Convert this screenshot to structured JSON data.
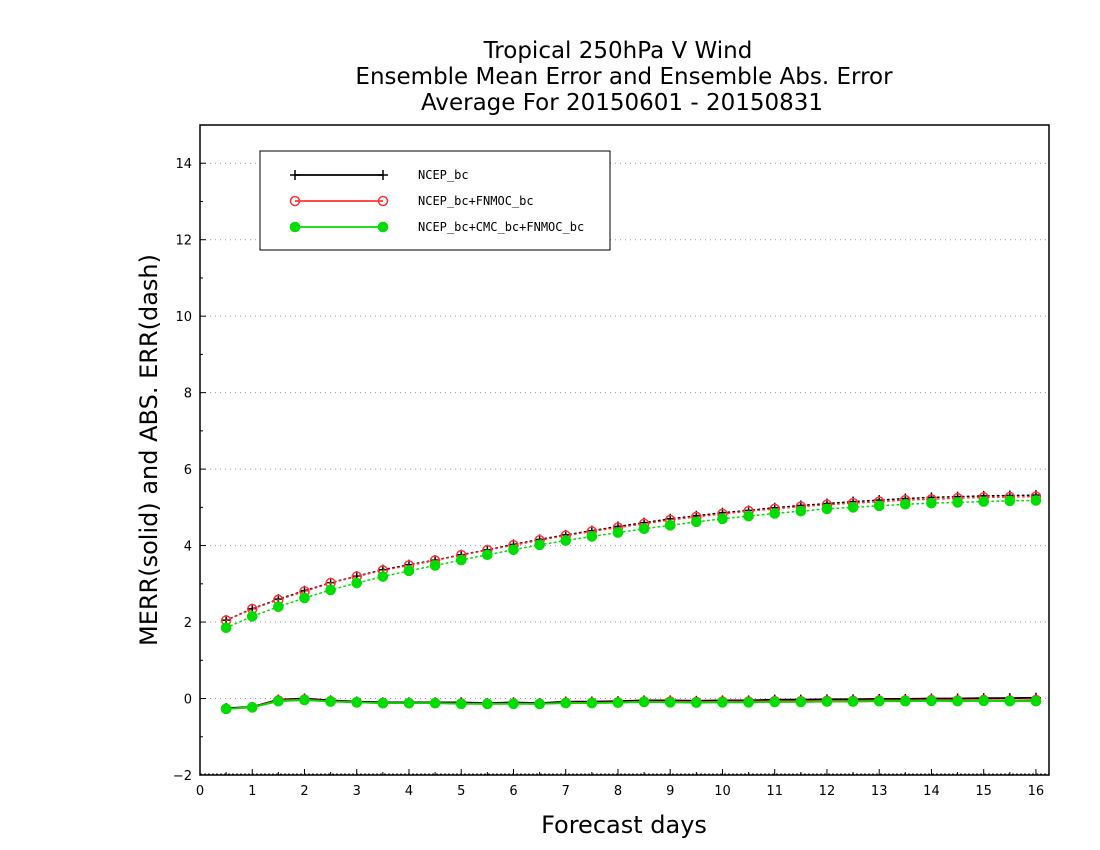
{
  "chart_data": {
    "type": "line",
    "title_lines": [
      "Tropical 250hPa V Wind",
      "Ensemble Mean Error and Ensemble Abs. Error",
      "Average For 20150601 - 20150831"
    ],
    "xlabel": "Forecast days",
    "ylabel": "MERR(solid) and ABS. ERR(dash)",
    "xlim": [
      0,
      16.25
    ],
    "ylim": [
      -2,
      15
    ],
    "xticks": [
      "0",
      "1",
      "2",
      "3",
      "4",
      "5",
      "6",
      "7",
      "8",
      "9",
      "10",
      "11",
      "12",
      "13",
      "14",
      "15",
      "16"
    ],
    "yticks": [
      "-2",
      "0",
      "2",
      "4",
      "6",
      "8",
      "10",
      "12",
      "14"
    ],
    "grid": "horizontal dotted",
    "legend_position": "top-left",
    "x": [
      0.5,
      1,
      1.5,
      2,
      2.5,
      3,
      3.5,
      4,
      4.5,
      5,
      5.5,
      6,
      6.5,
      7,
      7.5,
      8,
      8.5,
      9,
      9.5,
      10,
      10.5,
      11,
      11.5,
      12,
      12.5,
      13,
      13.5,
      14,
      14.5,
      15,
      15.5,
      16
    ],
    "series": [
      {
        "name": "NCEP_bc",
        "color": "#000000",
        "marker": "plus",
        "merr": [
          -0.25,
          -0.22,
          -0.03,
          0.0,
          -0.05,
          -0.08,
          -0.1,
          -0.1,
          -0.1,
          -0.1,
          -0.12,
          -0.1,
          -0.12,
          -0.08,
          -0.08,
          -0.07,
          -0.05,
          -0.05,
          -0.06,
          -0.05,
          -0.05,
          -0.03,
          -0.03,
          -0.02,
          -0.02,
          -0.01,
          -0.01,
          0.0,
          0.0,
          0.01,
          0.01,
          0.02
        ],
        "abs_err": [
          2.05,
          2.35,
          2.6,
          2.82,
          3.03,
          3.2,
          3.37,
          3.5,
          3.62,
          3.76,
          3.89,
          4.03,
          4.16,
          4.28,
          4.39,
          4.5,
          4.6,
          4.7,
          4.78,
          4.86,
          4.92,
          4.99,
          5.05,
          5.1,
          5.15,
          5.19,
          5.23,
          5.26,
          5.28,
          5.3,
          5.31,
          5.32
        ]
      },
      {
        "name": "NCEP_bc+FNMOC_bc",
        "color": "#ff3333",
        "marker": "open-circle",
        "merr": [
          -0.27,
          -0.23,
          -0.05,
          -0.03,
          -0.07,
          -0.1,
          -0.12,
          -0.12,
          -0.12,
          -0.13,
          -0.14,
          -0.13,
          -0.14,
          -0.11,
          -0.11,
          -0.1,
          -0.08,
          -0.08,
          -0.09,
          -0.08,
          -0.08,
          -0.07,
          -0.07,
          -0.06,
          -0.06,
          -0.05,
          -0.05,
          -0.04,
          -0.05,
          -0.04,
          -0.05,
          -0.04
        ],
        "abs_err": [
          2.04,
          2.34,
          2.58,
          2.8,
          3.02,
          3.19,
          3.35,
          3.48,
          3.61,
          3.75,
          3.88,
          4.01,
          4.14,
          4.26,
          4.37,
          4.47,
          4.57,
          4.67,
          4.75,
          4.83,
          4.9,
          4.96,
          5.02,
          5.07,
          5.11,
          5.15,
          5.19,
          5.21,
          5.24,
          5.26,
          5.27,
          5.28
        ]
      },
      {
        "name": "NCEP_bc+CMC_bc+FNMOC_bc",
        "color": "#00dd00",
        "marker": "filled-circle",
        "merr": [
          -0.27,
          -0.23,
          -0.07,
          -0.04,
          -0.08,
          -0.1,
          -0.12,
          -0.12,
          -0.12,
          -0.14,
          -0.14,
          -0.14,
          -0.14,
          -0.12,
          -0.12,
          -0.11,
          -0.09,
          -0.1,
          -0.11,
          -0.1,
          -0.1,
          -0.09,
          -0.09,
          -0.08,
          -0.08,
          -0.07,
          -0.07,
          -0.06,
          -0.07,
          -0.06,
          -0.07,
          -0.07
        ],
        "abs_err": [
          1.85,
          2.15,
          2.4,
          2.63,
          2.84,
          3.02,
          3.19,
          3.34,
          3.48,
          3.62,
          3.76,
          3.89,
          4.02,
          4.13,
          4.24,
          4.34,
          4.44,
          4.53,
          4.62,
          4.7,
          4.77,
          4.84,
          4.9,
          4.96,
          5.0,
          5.04,
          5.08,
          5.11,
          5.13,
          5.15,
          5.17,
          5.18
        ]
      }
    ]
  }
}
